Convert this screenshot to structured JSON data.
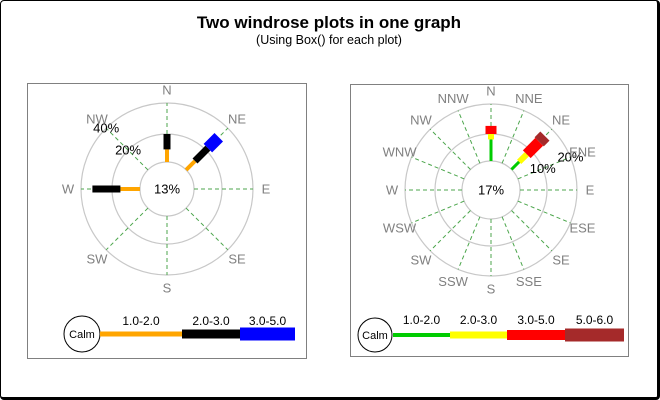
{
  "title": "Two windrose plots in one graph",
  "subtitle": "(Using Box() for each plot)",
  "colors": {
    "ring": "#C8C8C8",
    "spoke_green": "#4CA64C",
    "direction_label": "#808080",
    "panel_border": "#808080",
    "text": "#000000"
  },
  "chart_data": [
    {
      "type": "windrose",
      "position": "left",
      "calm_center_label": "13%",
      "ring_labels": [
        "20%",
        "40%"
      ],
      "ring_label_direction_deg": 315,
      "directions": [
        "N",
        "NE",
        "E",
        "SE",
        "S",
        "SW",
        "W",
        "NW"
      ],
      "speed_bins": [
        {
          "label": "1.0-2.0",
          "color": "#FFA500"
        },
        {
          "label": "2.0-3.0",
          "color": "#000000"
        },
        {
          "label": "3.0-5.0",
          "color": "#0000FF"
        }
      ],
      "bars": [
        {
          "direction": "N",
          "values_pct": [
            9,
            11,
            0
          ]
        },
        {
          "direction": "NE",
          "values_pct": [
            9,
            13,
            11
          ]
        },
        {
          "direction": "W",
          "values_pct": [
            14,
            20,
            0
          ]
        }
      ],
      "legend_calm_label": "Calm"
    },
    {
      "type": "windrose",
      "position": "right",
      "calm_center_label": "17%",
      "ring_labels": [
        "10%",
        "20%"
      ],
      "ring_label_direction_deg": 67.5,
      "directions": [
        "N",
        "NNE",
        "NE",
        "ENE",
        "E",
        "ESE",
        "SE",
        "SSE",
        "S",
        "SSW",
        "SW",
        "WSW",
        "W",
        "WNW",
        "NW",
        "NNW"
      ],
      "speed_bins": [
        {
          "label": "1.0-2.0",
          "color": "#00CC00"
        },
        {
          "label": "2.0-3.0",
          "color": "#FFFF00"
        },
        {
          "label": "3.0-5.0",
          "color": "#FF0000"
        },
        {
          "label": "5.0-6.0",
          "color": "#A52A2A"
        }
      ],
      "bars": [
        {
          "direction": "N",
          "values_pct": [
            8,
            2,
            3,
            0
          ]
        },
        {
          "direction": "NE",
          "values_pct": [
            4,
            4,
            6.5,
            3
          ]
        }
      ],
      "legend_calm_label": "Calm"
    }
  ]
}
